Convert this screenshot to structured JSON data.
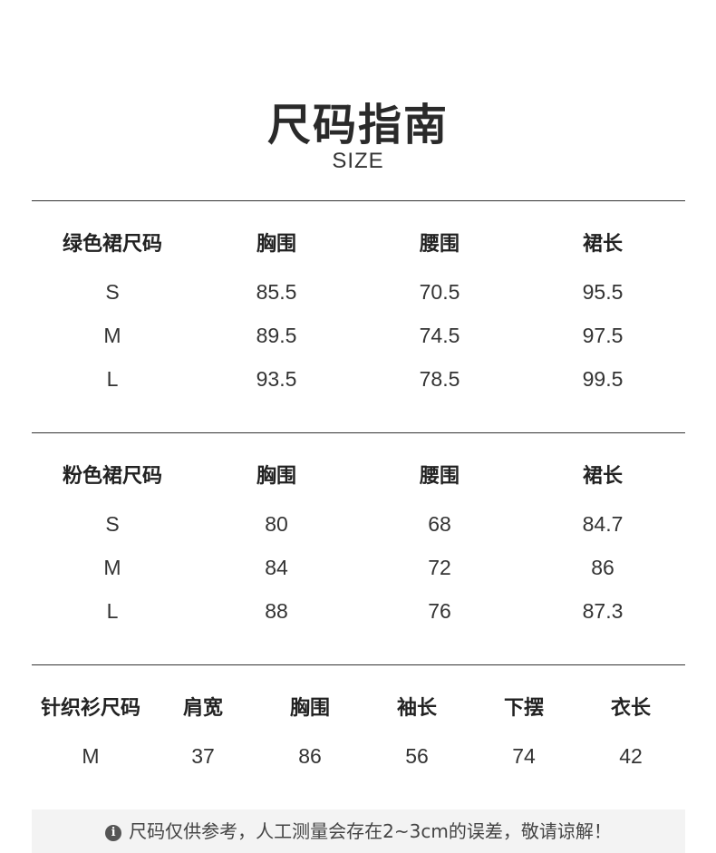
{
  "header": {
    "title": "尺码指南",
    "subtitle": "SIZE"
  },
  "tables": [
    {
      "headers": [
        "绿色裙尺码",
        "胸围",
        "腰围",
        "裙长"
      ],
      "rows": [
        [
          "S",
          "85.5",
          "70.5",
          "95.5"
        ],
        [
          "M",
          "89.5",
          "74.5",
          "97.5"
        ],
        [
          "L",
          "93.5",
          "78.5",
          "99.5"
        ]
      ]
    },
    {
      "headers": [
        "粉色裙尺码",
        "胸围",
        "腰围",
        "裙长"
      ],
      "rows": [
        [
          "S",
          "80",
          "68",
          "84.7"
        ],
        [
          "M",
          "84",
          "72",
          "86"
        ],
        [
          "L",
          "88",
          "76",
          "87.3"
        ]
      ]
    },
    {
      "headers": [
        "针织衫尺码",
        "肩宽",
        "胸围",
        "袖长",
        "下摆",
        "衣长"
      ],
      "rows": [
        [
          "M",
          "37",
          "86",
          "56",
          "74",
          "42"
        ]
      ]
    }
  ],
  "note": {
    "icon": "info-icon",
    "text": "尺码仅供参考，人工测量会存在2~3cm的误差，敬请谅解！"
  }
}
